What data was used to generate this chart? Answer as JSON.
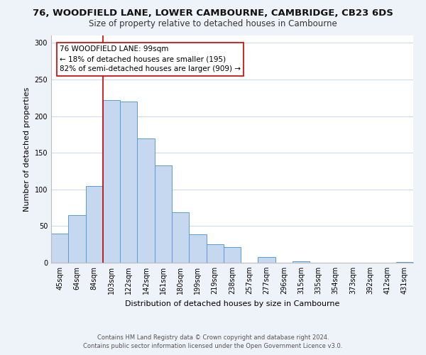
{
  "title": "76, WOODFIELD LANE, LOWER CAMBOURNE, CAMBRIDGE, CB23 6DS",
  "subtitle": "Size of property relative to detached houses in Cambourne",
  "xlabel": "Distribution of detached houses by size in Cambourne",
  "ylabel": "Number of detached properties",
  "bar_labels": [
    "45sqm",
    "64sqm",
    "84sqm",
    "103sqm",
    "122sqm",
    "142sqm",
    "161sqm",
    "180sqm",
    "199sqm",
    "219sqm",
    "238sqm",
    "257sqm",
    "277sqm",
    "296sqm",
    "315sqm",
    "335sqm",
    "354sqm",
    "373sqm",
    "392sqm",
    "412sqm",
    "431sqm"
  ],
  "bar_values": [
    40,
    65,
    105,
    222,
    220,
    170,
    133,
    69,
    39,
    25,
    21,
    0,
    8,
    0,
    2,
    0,
    0,
    0,
    0,
    0,
    1
  ],
  "bar_color": "#c5d8f0",
  "bar_edge_color": "#5b9bd5",
  "vline_x_index": 3,
  "vline_color": "#cc0000",
  "annotation_title": "76 WOODFIELD LANE: 99sqm",
  "annotation_line1": "← 18% of detached houses are smaller (195)",
  "annotation_line2": "82% of semi-detached houses are larger (909) →",
  "annotation_box_color": "#ffffff",
  "annotation_box_edge": "#cc0000",
  "ylim": [
    0,
    310
  ],
  "yticks": [
    0,
    50,
    100,
    150,
    200,
    250,
    300
  ],
  "footer_line1": "Contains HM Land Registry data © Crown copyright and database right 2024.",
  "footer_line2": "Contains public sector information licensed under the Open Government Licence v3.0.",
  "bg_color": "#eef2f9",
  "plot_bg_color": "#ffffff",
  "grid_color": "#c8d8ee",
  "title_fontsize": 9.5,
  "subtitle_fontsize": 8.5,
  "annotation_fontsize": 7.5,
  "tick_fontsize": 7,
  "ylabel_fontsize": 8,
  "xlabel_fontsize": 8
}
